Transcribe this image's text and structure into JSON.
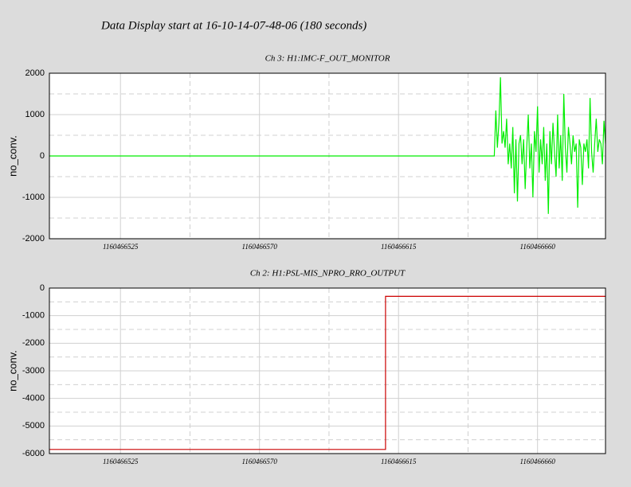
{
  "title": "Data Display start at 16-10-14-07-48-06 (180 seconds)",
  "chart_data": [
    {
      "type": "line",
      "title": "Ch 3: H1:IMC-F_OUT_MONITOR",
      "y_label": "no_conv.",
      "xlim": [
        1160466502,
        1160466682
      ],
      "xticks": [
        1160466525,
        1160466570,
        1160466615,
        1160466660
      ],
      "xminorticks": [
        1160466547.5,
        1160466592.5,
        1160466637.5
      ],
      "ylim": [
        -2000,
        2000
      ],
      "yticks": [
        2000,
        1000,
        0,
        -1000,
        -2000
      ],
      "yminorticks": [
        1500,
        500,
        -500,
        -1500
      ],
      "grid": true,
      "series": [
        {
          "name": "H1:IMC-F_OUT_MONITOR",
          "color": "#00ee00",
          "x": [
            1160466502,
            1160466646,
            1160466646.5,
            1160466647,
            1160466647.5,
            1160466648,
            1160466648.5,
            1160466649,
            1160466649.5,
            1160466650,
            1160466650.5,
            1160466651,
            1160466651.5,
            1160466652,
            1160466652.5,
            1160466653,
            1160466653.5,
            1160466654,
            1160466654.5,
            1160466655,
            1160466655.5,
            1160466656,
            1160466656.5,
            1160466657,
            1160466657.5,
            1160466658,
            1160466658.5,
            1160466659,
            1160466659.5,
            1160466660,
            1160466660.5,
            1160466661,
            1160466661.5,
            1160466662,
            1160466662.5,
            1160466663,
            1160466663.5,
            1160466664,
            1160466664.5,
            1160466665,
            1160466665.5,
            1160466666,
            1160466666.5,
            1160466667,
            1160466667.5,
            1160466668,
            1160466668.5,
            1160466669,
            1160466669.5,
            1160466670,
            1160466670.5,
            1160466671,
            1160466671.5,
            1160466672,
            1160466672.5,
            1160466673,
            1160466673.5,
            1160466674,
            1160466674.5,
            1160466675,
            1160466675.5,
            1160466676,
            1160466676.5,
            1160466677,
            1160466677.5,
            1160466678,
            1160466678.5,
            1160466679,
            1160466679.5,
            1160466680,
            1160466680.5,
            1160466681,
            1160466681.5,
            1160466682
          ],
          "values": [
            0,
            0,
            1100,
            200,
            800,
            1900,
            300,
            600,
            200,
            900,
            -200,
            300,
            -300,
            700,
            -900,
            400,
            -1100,
            300,
            500,
            -200,
            400,
            -800,
            200,
            1000,
            -300,
            300,
            -1000,
            600,
            100,
            1200,
            -400,
            400,
            -200,
            700,
            -600,
            300,
            -1400,
            600,
            -200,
            800,
            100,
            -500,
            1000,
            -300,
            500,
            -600,
            1500,
            200,
            -400,
            700,
            300,
            -200,
            500,
            100,
            300,
            -1250,
            400,
            200,
            -700,
            300,
            100,
            400,
            -300,
            1400,
            100,
            -400,
            300,
            900,
            100,
            400,
            300,
            -200,
            850,
            300
          ]
        }
      ]
    },
    {
      "type": "line",
      "title": "Ch 2: H1:PSL-MIS_NPRO_RRO_OUTPUT",
      "y_label": "no_conv.",
      "xlim": [
        1160466502,
        1160466682
      ],
      "xticks": [
        1160466525,
        1160466570,
        1160466615,
        1160466660
      ],
      "xminorticks": [
        1160466547.5,
        1160466592.5,
        1160466637.5
      ],
      "ylim": [
        -6000,
        0
      ],
      "yticks": [
        0,
        -1000,
        -2000,
        -3000,
        -4000,
        -5000,
        -6000
      ],
      "yminorticks": [
        -500,
        -1500,
        -2500,
        -3500,
        -4500,
        -5500
      ],
      "grid": true,
      "series": [
        {
          "name": "H1:PSL-MIS_NPRO_RRO_OUTPUT",
          "color": "#cc0000",
          "x": [
            1160466502,
            1160466610.8,
            1160466610.8,
            1160466682
          ],
          "values": [
            -5850,
            -5850,
            -300,
            -300
          ]
        }
      ]
    }
  ]
}
